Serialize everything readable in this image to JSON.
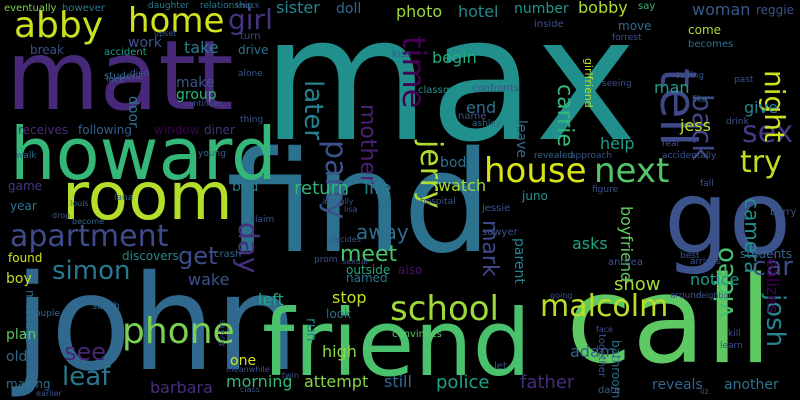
{
  "words": [
    {
      "text": "max",
      "color": "#21908d"
    },
    {
      "text": "find",
      "color": "#2c728e"
    },
    {
      "text": "john",
      "color": "#31688e"
    },
    {
      "text": "call",
      "color": "#5ec962"
    },
    {
      "text": "matt",
      "color": "#482878"
    },
    {
      "text": "friend",
      "color": "#4ac16d"
    },
    {
      "text": "howard",
      "color": "#35b779"
    },
    {
      "text": "go",
      "color": "#3b528b"
    },
    {
      "text": "room",
      "color": "#b5de2b"
    },
    {
      "text": "home",
      "color": "#d2e21b"
    },
    {
      "text": "abby",
      "color": "#c8e020"
    },
    {
      "text": "girl",
      "color": "#46337e"
    },
    {
      "text": "tell",
      "color": "#3e4989"
    },
    {
      "text": "time",
      "color": "#440154"
    },
    {
      "text": "house",
      "color": "#d8e219"
    },
    {
      "text": "next",
      "color": "#52c569"
    },
    {
      "text": "sex",
      "color": "#443983"
    },
    {
      "text": "night",
      "color": "#cde11d"
    },
    {
      "text": "try",
      "color": "#bddf26"
    },
    {
      "text": "apartment",
      "color": "#3e4a89"
    },
    {
      "text": "jerry",
      "color": "#b0dd2f"
    },
    {
      "text": "party",
      "color": "#3b528b"
    },
    {
      "text": "day",
      "color": "#472f7d"
    },
    {
      "text": "school",
      "color": "#9fda3a"
    },
    {
      "text": "malcolm",
      "color": "#bade28"
    },
    {
      "text": "phone",
      "color": "#7ad151"
    },
    {
      "text": "simon",
      "color": "#2a788e"
    },
    {
      "text": "get",
      "color": "#3e4a89"
    },
    {
      "text": "back",
      "color": "#3f4788"
    },
    {
      "text": "later",
      "color": "#25838e"
    },
    {
      "text": "mother",
      "color": "#482173"
    },
    {
      "text": "carrie",
      "color": "#35b779"
    },
    {
      "text": "leaf",
      "color": "#2a788e"
    },
    {
      "text": "see",
      "color": "#482475"
    },
    {
      "text": "car",
      "color": "#3e4a89"
    },
    {
      "text": "video",
      "color": "#46c06f"
    },
    {
      "text": "josh",
      "color": "#25848e"
    },
    {
      "text": "mark",
      "color": "#3f4889"
    },
    {
      "text": "meet",
      "color": "#4ac16d"
    },
    {
      "text": "away",
      "color": "#2e6e8e"
    },
    {
      "text": "return",
      "color": "#32b67a"
    },
    {
      "text": "life",
      "color": "#287d8e"
    },
    {
      "text": "camera",
      "color": "#21918c"
    },
    {
      "text": "show",
      "color": "#a5db36"
    },
    {
      "text": "boyfriend",
      "color": "#63cb5f"
    },
    {
      "text": "morning",
      "color": "#35b779"
    },
    {
      "text": "high",
      "color": "#90d743"
    },
    {
      "text": "police",
      "color": "#1fa187"
    },
    {
      "text": "father",
      "color": "#472d7b"
    },
    {
      "text": "still",
      "color": "#31688e"
    },
    {
      "text": "attempt",
      "color": "#86d549"
    },
    {
      "text": "adam",
      "color": "#34618d"
    },
    {
      "text": "notice",
      "color": "#1f9a8a"
    },
    {
      "text": "realizes",
      "color": "#440154"
    },
    {
      "text": "reveals",
      "color": "#32658e"
    },
    {
      "text": "another",
      "color": "#2c728e"
    },
    {
      "text": "one",
      "color": "#d2e21b"
    },
    {
      "text": "barbara",
      "color": "#472d7b"
    },
    {
      "text": "run",
      "color": "#26818e"
    },
    {
      "text": "stop",
      "color": "#c2df23"
    },
    {
      "text": "look",
      "color": "#2e6e8e"
    },
    {
      "text": "left",
      "color": "#22a785"
    },
    {
      "text": "wake",
      "color": "#3b528b"
    },
    {
      "text": "bed",
      "color": "#2a788e"
    },
    {
      "text": "watch",
      "color": "#a2da37"
    },
    {
      "text": "body",
      "color": "#2c738e"
    },
    {
      "text": "help",
      "color": "#1f9e89"
    },
    {
      "text": "asks",
      "color": "#20a386"
    },
    {
      "text": "parent",
      "color": "#26828e"
    },
    {
      "text": "man",
      "color": "#1fa088"
    },
    {
      "text": "jess",
      "color": "#b8de29"
    },
    {
      "text": "end",
      "color": "#2d708e"
    },
    {
      "text": "begin",
      "color": "#25ac82"
    },
    {
      "text": "photo",
      "color": "#9bd93c"
    },
    {
      "text": "hotel",
      "color": "#23898e"
    },
    {
      "text": "number",
      "color": "#1f998a"
    },
    {
      "text": "bobby",
      "color": "#addc30"
    },
    {
      "text": "woman",
      "color": "#38598c"
    },
    {
      "text": "give",
      "color": "#25848e"
    },
    {
      "text": "sister",
      "color": "#24878e"
    },
    {
      "text": "doll",
      "color": "#31688e"
    },
    {
      "text": "take",
      "color": "#287c8e"
    },
    {
      "text": "make",
      "color": "#39568c"
    },
    {
      "text": "group",
      "color": "#32b67a"
    },
    {
      "text": "work",
      "color": "#3b528b"
    },
    {
      "text": "door",
      "color": "#2a778e"
    },
    {
      "text": "window",
      "color": "#440154"
    },
    {
      "text": "diner",
      "color": "#45337d"
    },
    {
      "text": "receives",
      "color": "#4c2a79"
    },
    {
      "text": "following",
      "color": "#345f8d"
    },
    {
      "text": "break",
      "color": "#3d4d8a"
    },
    {
      "text": "game",
      "color": "#453781"
    },
    {
      "text": "year",
      "color": "#2c718e"
    },
    {
      "text": "found",
      "color": "#d5e21a"
    },
    {
      "text": "boy",
      "color": "#c0df25"
    },
    {
      "text": "message",
      "color": "#2c728e"
    },
    {
      "text": "plan",
      "color": "#5cc863"
    },
    {
      "text": "old",
      "color": "#33638d"
    },
    {
      "text": "making",
      "color": "#2e6e8e"
    },
    {
      "text": "drive",
      "color": "#2c728e"
    },
    {
      "text": "turn",
      "color": "#3d4d8a"
    },
    {
      "text": "accident",
      "color": "#1f9e89"
    },
    {
      "text": "discovers",
      "color": "#25858e"
    },
    {
      "text": "named",
      "color": "#2c728e"
    },
    {
      "text": "outside",
      "color": "#22a884"
    },
    {
      "text": "also",
      "color": "#471164"
    },
    {
      "text": "leave",
      "color": "#2f6c8e"
    },
    {
      "text": "come",
      "color": "#aadc32"
    },
    {
      "text": "move",
      "color": "#2e6d8e"
    },
    {
      "text": "becomes",
      "color": "#2c728e"
    },
    {
      "text": "together",
      "color": "#3b528b"
    },
    {
      "text": "bathroom",
      "color": "#2d708e"
    },
    {
      "text": "date",
      "color": "#34618d"
    },
    {
      "text": "students",
      "color": "#31688e"
    },
    {
      "text": "reggie",
      "color": "#3b528b"
    },
    {
      "text": "however",
      "color": "#2a788e"
    },
    {
      "text": "eventually",
      "color": "#7fd34e"
    },
    {
      "text": "daughter",
      "color": "#2a788e"
    },
    {
      "text": "relationship",
      "color": "#2a788e"
    },
    {
      "text": "say",
      "color": "#35b779"
    },
    {
      "text": "inside",
      "color": "#3b528b"
    },
    {
      "text": "student",
      "color": "#31688e"
    },
    {
      "text": "juno",
      "color": "#21918c"
    },
    {
      "text": "jessie",
      "color": "#3b528b"
    },
    {
      "text": "sawyer",
      "color": "#3b528b"
    },
    {
      "text": "classmate",
      "color": "#21918c"
    },
    {
      "text": "confronts",
      "color": "#3b528b"
    },
    {
      "text": "ashley",
      "color": "#31688e"
    },
    {
      "text": "kiss",
      "color": "#3b528b"
    },
    {
      "text": "lana",
      "color": "#31688e"
    },
    {
      "text": "sarah",
      "color": "#31688e"
    },
    {
      "text": "couple",
      "color": "#31688e"
    },
    {
      "text": "andrea",
      "color": "#3b528b"
    },
    {
      "text": "barry",
      "color": "#3b528b"
    },
    {
      "text": "forrest",
      "color": "#3b528b"
    },
    {
      "text": "figure",
      "color": "#3b528b"
    },
    {
      "text": "approach",
      "color": "#3b528b"
    },
    {
      "text": "revealed",
      "color": "#31688e"
    },
    {
      "text": "hospital",
      "color": "#3b528b"
    },
    {
      "text": "convinces",
      "color": "#5ec962"
    },
    {
      "text": "arrives",
      "color": "#3b528b"
    },
    {
      "text": "crash",
      "color": "#31688e"
    },
    {
      "text": "prom",
      "color": "#3b528b"
    },
    {
      "text": "let",
      "color": "#3b528b"
    },
    {
      "text": "lock",
      "color": "#31688e"
    },
    {
      "text": "died",
      "color": "#3b528b"
    },
    {
      "text": "alone",
      "color": "#3b528b"
    },
    {
      "text": "drink",
      "color": "#3b528b"
    },
    {
      "text": "past",
      "color": "#3b528b"
    },
    {
      "text": "like",
      "color": "#31688e"
    },
    {
      "text": "telling",
      "color": "#3b528b"
    },
    {
      "text": "seeing",
      "color": "#3b528b"
    },
    {
      "text": "girlfriend",
      "color": "#b5de2b"
    },
    {
      "text": "name",
      "color": "#3b528b"
    },
    {
      "text": "young",
      "color": "#31688e"
    },
    {
      "text": "walk",
      "color": "#31688e"
    },
    {
      "text": "thing",
      "color": "#3b528b"
    },
    {
      "text": "real",
      "color": "#3b528b"
    },
    {
      "text": "accidentally",
      "color": "#3b528b"
    },
    {
      "text": "fall",
      "color": "#3b528b"
    },
    {
      "text": "best",
      "color": "#3b528b"
    },
    {
      "text": "around",
      "color": "#3b528b"
    },
    {
      "text": "learn",
      "color": "#3b528b"
    },
    {
      "text": "kill",
      "color": "#3b528b"
    },
    {
      "text": "neighbor",
      "color": "#3b528b"
    },
    {
      "text": "claim",
      "color": "#3b528b"
    },
    {
      "text": "decides",
      "color": "#3b528b"
    },
    {
      "text": "sexual",
      "color": "#3b528b"
    },
    {
      "text": "twin",
      "color": "#3b528b"
    },
    {
      "text": "class",
      "color": "#3b528b"
    },
    {
      "text": "saying",
      "color": "#3b528b"
    },
    {
      "text": "drop",
      "color": "#3b528b"
    },
    {
      "text": "become",
      "color": "#31688e"
    },
    {
      "text": "earlier",
      "color": "#3b528b"
    },
    {
      "text": "meanwhile",
      "color": "#3b528b"
    },
    {
      "text": "knock",
      "color": "#3b528b"
    },
    {
      "text": "upset",
      "color": "#3b528b"
    },
    {
      "text": "continues",
      "color": "#3b528b"
    },
    {
      "text": "going",
      "color": "#3b528b"
    },
    {
      "text": "face",
      "color": "#3b528b"
    },
    {
      "text": "liz",
      "color": "#3b528b"
    },
    {
      "text": "louis",
      "color": "#31688e"
    },
    {
      "text": "lisa",
      "color": "#3b528b"
    },
    {
      "text": "actually",
      "color": "#3b528b"
    }
  ]
}
